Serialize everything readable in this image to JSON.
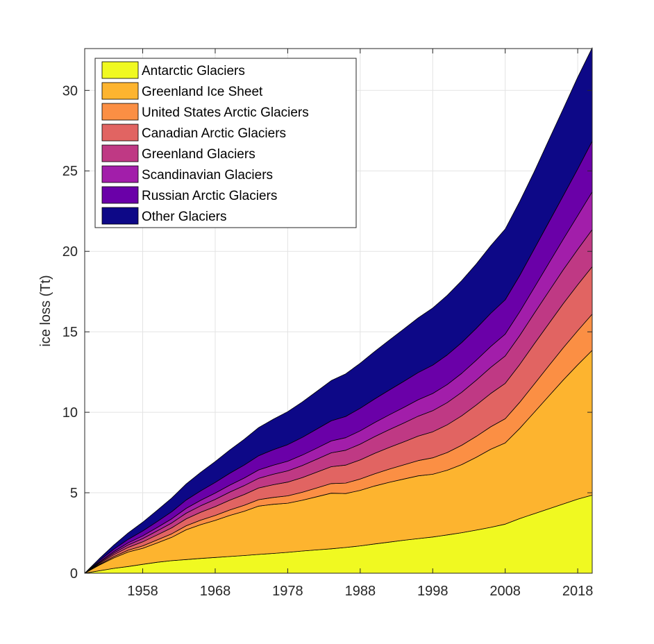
{
  "chart_data": {
    "type": "area",
    "stacked": true,
    "ylabel": "ice loss (Tt)",
    "xlabel": "",
    "xlim": [
      1950,
      2020
    ],
    "ylim": [
      0,
      32.6
    ],
    "xticks": [
      1958,
      1968,
      1978,
      1988,
      1998,
      2008,
      2018
    ],
    "yticks": [
      0,
      5,
      10,
      15,
      20,
      25,
      30
    ],
    "grid": true,
    "legend_position": "top-left",
    "x": [
      1950,
      1952,
      1954,
      1956,
      1958,
      1960,
      1962,
      1964,
      1966,
      1968,
      1970,
      1972,
      1974,
      1976,
      1978,
      1980,
      1982,
      1984,
      1986,
      1988,
      1990,
      1992,
      1994,
      1996,
      1998,
      2000,
      2002,
      2004,
      2006,
      2008,
      2010,
      2012,
      2014,
      2016,
      2018,
      2020
    ],
    "series": [
      {
        "name": "Antarctic Glaciers",
        "color": "#f0f921",
        "values": [
          0,
          0.15,
          0.3,
          0.42,
          0.55,
          0.68,
          0.78,
          0.85,
          0.92,
          0.98,
          1.04,
          1.1,
          1.17,
          1.23,
          1.3,
          1.38,
          1.45,
          1.52,
          1.6,
          1.7,
          1.82,
          1.93,
          2.05,
          2.15,
          2.25,
          2.38,
          2.52,
          2.68,
          2.85,
          3.05,
          3.4,
          3.7,
          4.0,
          4.3,
          4.6,
          4.85
        ]
      },
      {
        "name": "Greenland Ice Sheet",
        "color": "#fdb42f",
        "values": [
          0,
          0.35,
          0.65,
          0.9,
          1.0,
          1.2,
          1.45,
          1.85,
          2.1,
          2.3,
          2.55,
          2.75,
          3.0,
          3.05,
          3.05,
          3.15,
          3.3,
          3.45,
          3.35,
          3.45,
          3.6,
          3.72,
          3.8,
          3.9,
          3.9,
          4.02,
          4.23,
          4.52,
          4.85,
          5.05,
          5.6,
          6.3,
          7.0,
          7.7,
          8.35,
          9.0
        ]
      },
      {
        "name": "United States Arctic Glaciers",
        "color": "#fb8f44",
        "values": [
          0,
          0.04,
          0.08,
          0.11,
          0.15,
          0.19,
          0.22,
          0.25,
          0.28,
          0.31,
          0.34,
          0.37,
          0.4,
          0.43,
          0.46,
          0.5,
          0.55,
          0.6,
          0.65,
          0.7,
          0.76,
          0.82,
          0.88,
          0.95,
          1.02,
          1.1,
          1.2,
          1.3,
          1.4,
          1.5,
          1.62,
          1.75,
          1.88,
          2.0,
          2.12,
          2.25
        ]
      },
      {
        "name": "Canadian Arctic Glaciers",
        "color": "#e16462",
        "values": [
          0,
          0.06,
          0.12,
          0.18,
          0.25,
          0.31,
          0.37,
          0.43,
          0.49,
          0.55,
          0.61,
          0.67,
          0.73,
          0.79,
          0.85,
          0.91,
          0.98,
          1.05,
          1.12,
          1.19,
          1.27,
          1.35,
          1.43,
          1.52,
          1.62,
          1.72,
          1.83,
          1.95,
          2.07,
          2.2,
          2.35,
          2.5,
          2.62,
          2.75,
          2.85,
          2.95
        ]
      },
      {
        "name": "Greenland Glaciers",
        "color": "#bf3984",
        "values": [
          0,
          0.05,
          0.1,
          0.15,
          0.2,
          0.25,
          0.3,
          0.35,
          0.4,
          0.45,
          0.5,
          0.55,
          0.6,
          0.65,
          0.7,
          0.75,
          0.8,
          0.86,
          0.92,
          0.98,
          1.04,
          1.1,
          1.17,
          1.24,
          1.31,
          1.38,
          1.46,
          1.54,
          1.62,
          1.7,
          1.8,
          1.9,
          2.0,
          2.1,
          2.2,
          2.3
        ]
      },
      {
        "name": "Scandinavian Glaciers",
        "color": "#a21eaa",
        "values": [
          0,
          0.05,
          0.09,
          0.13,
          0.17,
          0.21,
          0.26,
          0.3,
          0.34,
          0.39,
          0.43,
          0.47,
          0.52,
          0.56,
          0.6,
          0.65,
          0.69,
          0.74,
          0.78,
          0.83,
          0.87,
          0.92,
          0.97,
          1.02,
          1.07,
          1.12,
          1.18,
          1.24,
          1.3,
          1.36,
          1.48,
          1.6,
          1.75,
          1.9,
          2.1,
          2.35
        ]
      },
      {
        "name": "Russian Arctic Glaciers",
        "color": "#6a00a8",
        "values": [
          0,
          0.08,
          0.15,
          0.22,
          0.3,
          0.37,
          0.44,
          0.52,
          0.59,
          0.66,
          0.74,
          0.81,
          0.88,
          0.96,
          1.03,
          1.1,
          1.18,
          1.25,
          1.32,
          1.4,
          1.47,
          1.54,
          1.62,
          1.69,
          1.76,
          1.84,
          1.91,
          1.98,
          2.06,
          2.13,
          2.25,
          2.4,
          2.55,
          2.7,
          2.9,
          3.15
        ]
      },
      {
        "name": "Other Glaciers",
        "color": "#0d0887",
        "values": [
          0,
          0.12,
          0.25,
          0.4,
          0.55,
          0.7,
          0.85,
          1.0,
          1.15,
          1.3,
          1.45,
          1.6,
          1.75,
          1.9,
          2.05,
          2.2,
          2.35,
          2.5,
          2.65,
          2.8,
          2.95,
          3.1,
          3.25,
          3.4,
          3.55,
          3.7,
          3.85,
          4.0,
          4.2,
          4.4,
          4.6,
          4.8,
          5.1,
          5.4,
          5.7,
          5.8
        ]
      }
    ]
  }
}
